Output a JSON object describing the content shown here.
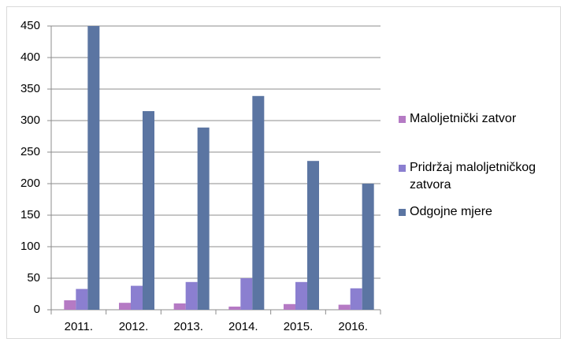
{
  "chart_data": {
    "type": "bar",
    "categories": [
      "2011.",
      "2012.",
      "2013.",
      "2014.",
      "2015.",
      "2016."
    ],
    "series": [
      {
        "name": "Maloljetnički zatvor",
        "color": "#b57ac4",
        "values": [
          15,
          11,
          10,
          5,
          9,
          8
        ]
      },
      {
        "name": "Pridržaj maloljetničkog zatvora",
        "color": "#8b7fd0",
        "values": [
          33,
          38,
          44,
          50,
          44,
          34
        ]
      },
      {
        "name": "Odgojne mjere",
        "color": "#5b75a2",
        "values": [
          450,
          315,
          289,
          339,
          236,
          200
        ]
      }
    ],
    "ylim": [
      0,
      450
    ],
    "yticks": [
      0,
      50,
      100,
      150,
      200,
      250,
      300,
      350,
      400,
      450
    ],
    "grid": true,
    "legend": "right"
  }
}
